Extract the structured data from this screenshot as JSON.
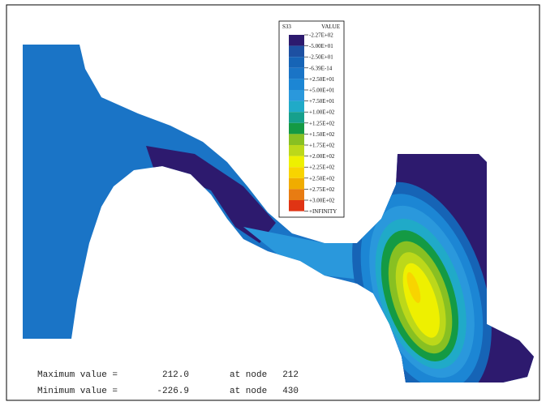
{
  "legend": {
    "title": "S33",
    "header": "VALUE",
    "labels": [
      "-2.27E+02",
      "-5.00E+01",
      "-2.50E+01",
      "-6.39E-14",
      "+2.50E+01",
      "+5.00E+01",
      "+7.50E+01",
      "+1.00E+02",
      "+1.25E+02",
      "+1.50E+02",
      "+1.75E+02",
      "+2.00E+02",
      "+2.25E+02",
      "+2.50E+02",
      "+2.75E+02",
      "+3.00E+02",
      "+INFINITY"
    ],
    "colors": [
      "#2d1a6e",
      "#1d50a2",
      "#1664b6",
      "#1a74c6",
      "#1c86d4",
      "#2a98dc",
      "#20aac8",
      "#16a08c",
      "#149a44",
      "#88c022",
      "#bcd81a",
      "#eef000",
      "#f8d400",
      "#f0ac00",
      "#e87c12",
      "#e03414"
    ]
  },
  "footer": {
    "rows": [
      [
        "Maximum value =",
        "212.0",
        "at node",
        "212"
      ],
      [
        "Minimum value =",
        "-226.9",
        "at node",
        "430"
      ]
    ]
  }
}
